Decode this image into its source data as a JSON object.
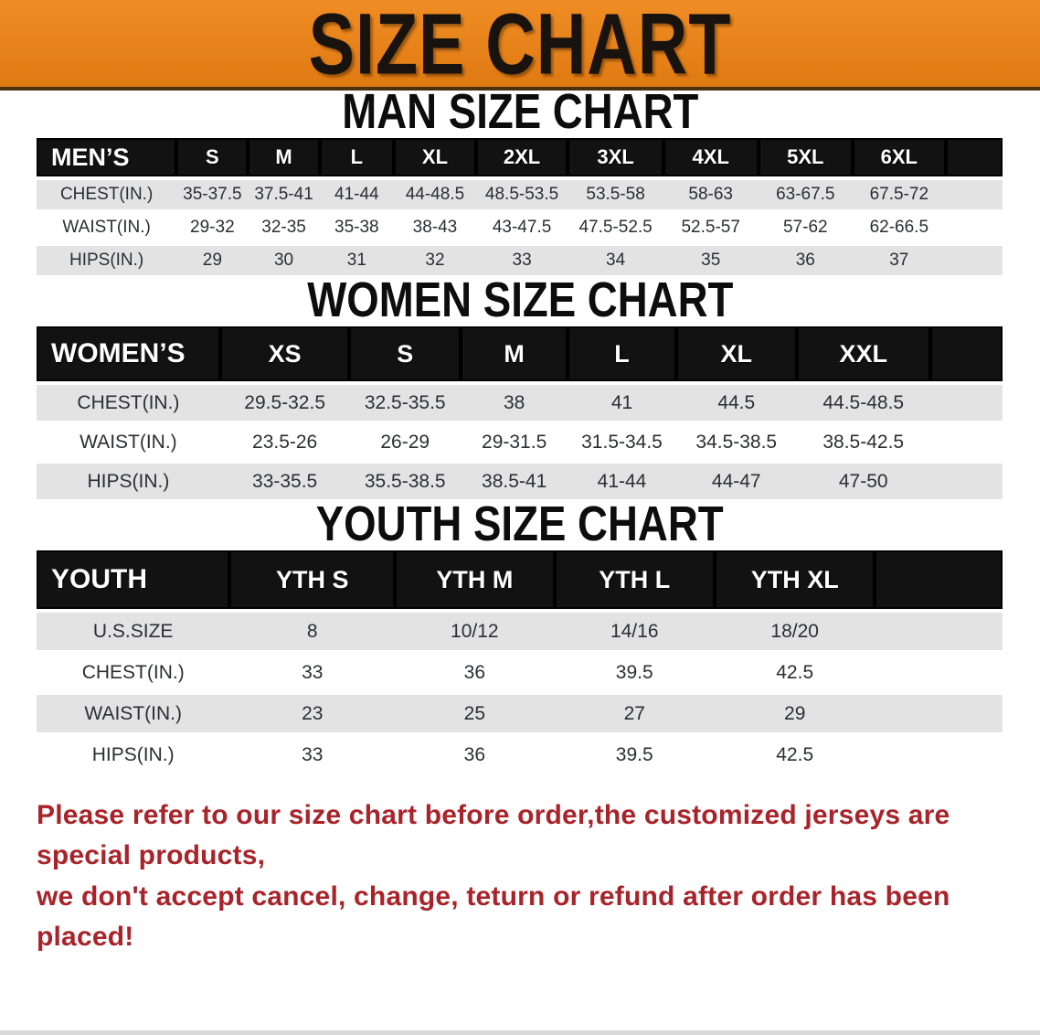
{
  "banner": {
    "title": "SIZE CHART"
  },
  "headings": {
    "men": "MAN SIZE CHART",
    "women": "WOMEN SIZE CHART",
    "youth": "YOUTH SIZE CHART"
  },
  "tables": {
    "men": {
      "label": "MEN’S",
      "sizes": [
        "S",
        "M",
        "L",
        "XL",
        "2XL",
        "3XL",
        "4XL",
        "5XL",
        "6XL"
      ],
      "rows": [
        {
          "label": "CHEST(IN.)",
          "values": [
            "35-37.5",
            "37.5-41",
            "41-44",
            "44-48.5",
            "48.5-53.5",
            "53.5-58",
            "58-63",
            "63-67.5",
            "67.5-72"
          ]
        },
        {
          "label": "WAIST(IN.)",
          "values": [
            "29-32",
            "32-35",
            "35-38",
            "38-43",
            "43-47.5",
            "47.5-52.5",
            "52.5-57",
            "57-62",
            "62-66.5"
          ]
        },
        {
          "label": "HIPS(IN.)",
          "values": [
            "29",
            "30",
            "31",
            "32",
            "33",
            "34",
            "35",
            "36",
            "37"
          ]
        }
      ]
    },
    "women": {
      "label": "WOMEN’S",
      "sizes": [
        "XS",
        "S",
        "M",
        "L",
        "XL",
        "XXL"
      ],
      "rows": [
        {
          "label": "CHEST(IN.)",
          "values": [
            "29.5-32.5",
            "32.5-35.5",
            "38",
            "41",
            "44.5",
            "44.5-48.5"
          ]
        },
        {
          "label": "WAIST(IN.)",
          "values": [
            "23.5-26",
            "26-29",
            "29-31.5",
            "31.5-34.5",
            "34.5-38.5",
            "38.5-42.5"
          ]
        },
        {
          "label": "HIPS(IN.)",
          "values": [
            "33-35.5",
            "35.5-38.5",
            "38.5-41",
            "41-44",
            "44-47",
            "47-50"
          ]
        }
      ]
    },
    "youth": {
      "label": "YOUTH",
      "sizes": [
        "YTH S",
        "YTH M",
        "YTH L",
        "YTH XL"
      ],
      "rows": [
        {
          "label": "U.S.SIZE",
          "values": [
            "8",
            "10/12",
            "14/16",
            "18/20"
          ]
        },
        {
          "label": "CHEST(IN.)",
          "values": [
            "33",
            "36",
            "39.5",
            "42.5"
          ]
        },
        {
          "label": "WAIST(IN.)",
          "values": [
            "23",
            "25",
            "27",
            "29"
          ]
        },
        {
          "label": "HIPS(IN.)",
          "values": [
            "33",
            "36",
            "39.5",
            "42.5"
          ]
        }
      ]
    }
  },
  "disclaimer": {
    "line1": "Please refer to our size chart before order,the customized jerseys are special products,",
    "line2": "we don't accept cancel, change, teturn or refund after order has been placed!"
  },
  "colors": {
    "banner_orange": "#E8811C",
    "header_black": "#121212",
    "row_gray": "#E3E3E3",
    "disclaimer_red": "#A8242A"
  }
}
